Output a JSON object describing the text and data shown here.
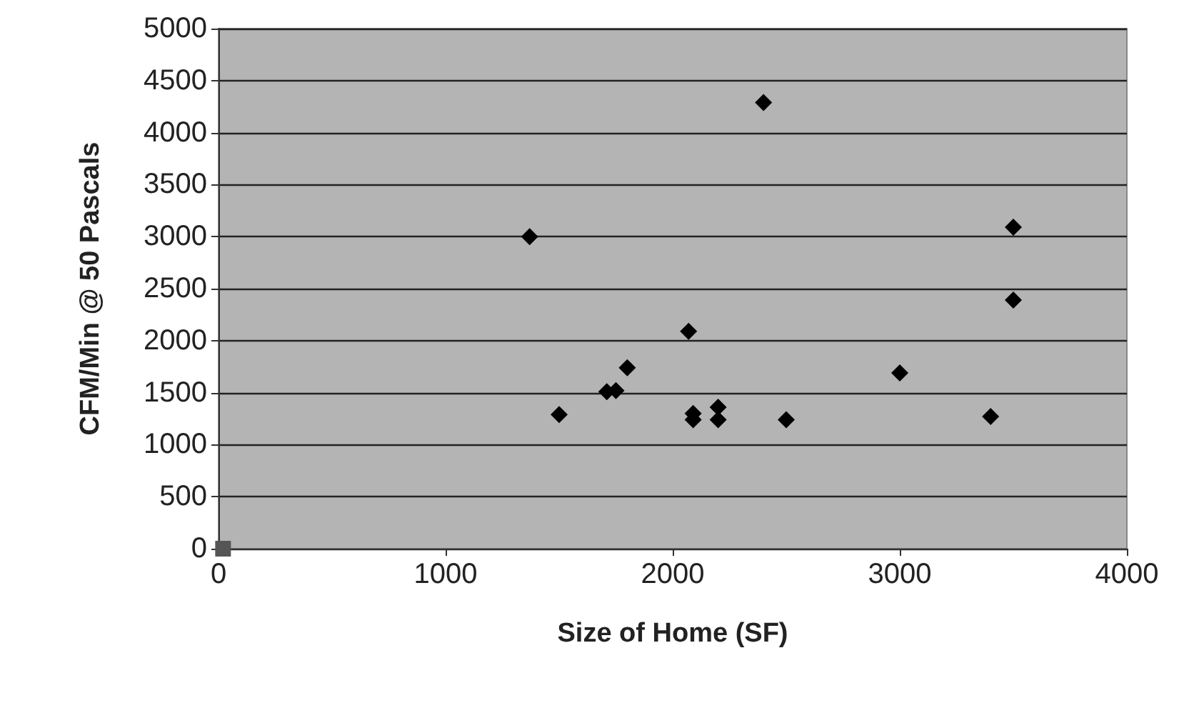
{
  "chart_data": {
    "type": "scatter",
    "xlabel": "Size of Home (SF)",
    "ylabel": "CFM/Min @ 50 Pascals",
    "series": [
      {
        "color": "#000000",
        "marker": "diamond",
        "x": [
          1370,
          1500,
          1710,
          1750,
          1800,
          2070,
          2090,
          2090,
          2200,
          2200,
          2400,
          2500,
          3000,
          3400,
          3500,
          3500
        ],
        "values": [
          3000,
          1290,
          1510,
          1520,
          1740,
          2090,
          1300,
          1240,
          1360,
          1240,
          4290,
          1240,
          1690,
          1270,
          3090,
          2390
        ]
      },
      {
        "color": "#555555",
        "marker": "square",
        "x": [
          20
        ],
        "values": [
          0
        ]
      }
    ],
    "xlim": [
      0,
      4000
    ],
    "xticks": [
      0,
      1000,
      2000,
      3000,
      4000
    ],
    "ylim": [
      0,
      5000
    ],
    "yticks": [
      0,
      500,
      1000,
      1500,
      2000,
      2500,
      3000,
      3500,
      4000,
      4500,
      5000
    ],
    "grid": "y"
  }
}
